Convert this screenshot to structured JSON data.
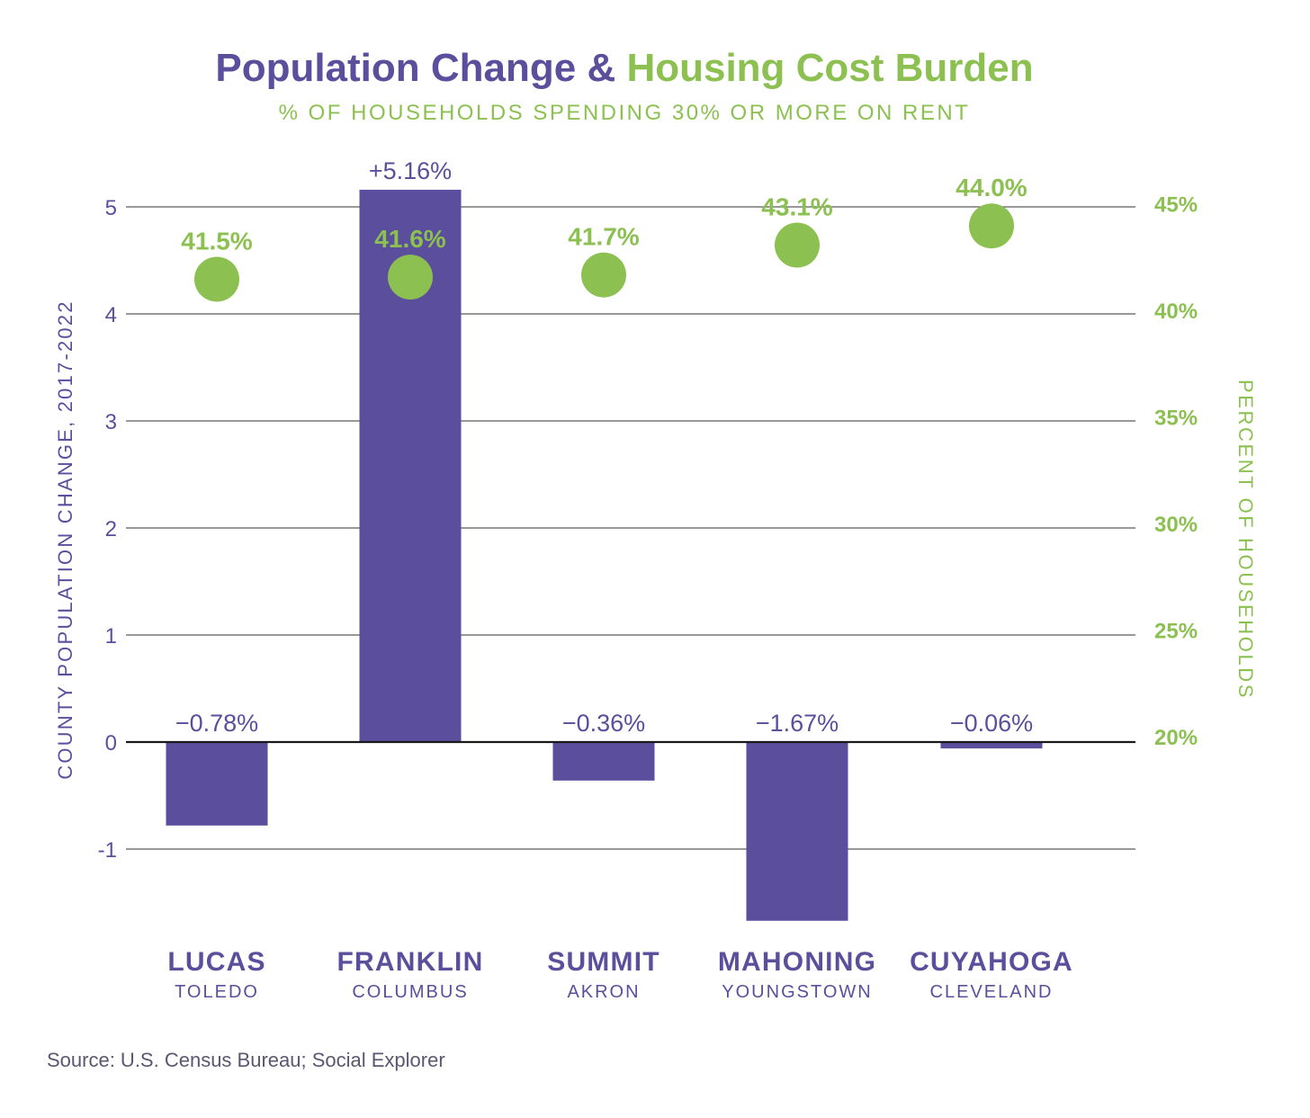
{
  "title": {
    "part1": "Population Change & ",
    "part2": "Housing Cost Burden"
  },
  "subtitle": "% OF HOUSEHOLDS SPENDING 30% OR MORE ON RENT",
  "source": "Source: U.S. Census Bureau; Social Explorer",
  "colors": {
    "bar": "#5b4e9c",
    "dot": "#8cc051",
    "grid": "#5a5a5a",
    "zero_line": "#1a1a1a",
    "left_axis_text": "#5b4e9c",
    "right_axis_text": "#8cc051"
  },
  "chart_data": {
    "type": "bar",
    "categories": [
      "LUCAS",
      "FRANKLIN",
      "SUMMIT",
      "MAHONING",
      "CUYAHOGA"
    ],
    "subcategories": [
      "TOLEDO",
      "COLUMBUS",
      "AKRON",
      "YOUNGSTOWN",
      "CLEVELAND"
    ],
    "series": [
      {
        "type": "bar",
        "axis": "left",
        "values": [
          -0.78,
          5.16,
          -0.36,
          -1.67,
          -0.06
        ],
        "labels": [
          "−0.78%",
          "+5.16%",
          "−0.36%",
          "−1.67%",
          "−0.06%"
        ]
      },
      {
        "type": "scatter",
        "axis": "right",
        "values": [
          41.5,
          41.6,
          41.7,
          43.1,
          44.0
        ],
        "labels": [
          "41.5%",
          "41.6%",
          "41.7%",
          "43.1%",
          "44.0%"
        ]
      }
    ],
    "ylabel": "COUNTY POPULATION CHANGE, 2017-2022",
    "y2label": "PERCENT OF HOUSEHOLDS",
    "yticks": [
      5,
      4,
      3,
      2,
      1,
      0,
      -1
    ],
    "yticklabels": [
      "5",
      "4",
      "3",
      "2",
      "1",
      "0",
      "-1"
    ],
    "ylim": [
      -1.8,
      5.2
    ],
    "y2ticks": [
      45,
      40,
      35,
      30,
      25,
      20
    ],
    "y2ticklabels": [
      "45%",
      "40%",
      "35%",
      "30%",
      "25%",
      "20%"
    ],
    "y2lim": [
      20,
      45
    ],
    "grid": true
  }
}
